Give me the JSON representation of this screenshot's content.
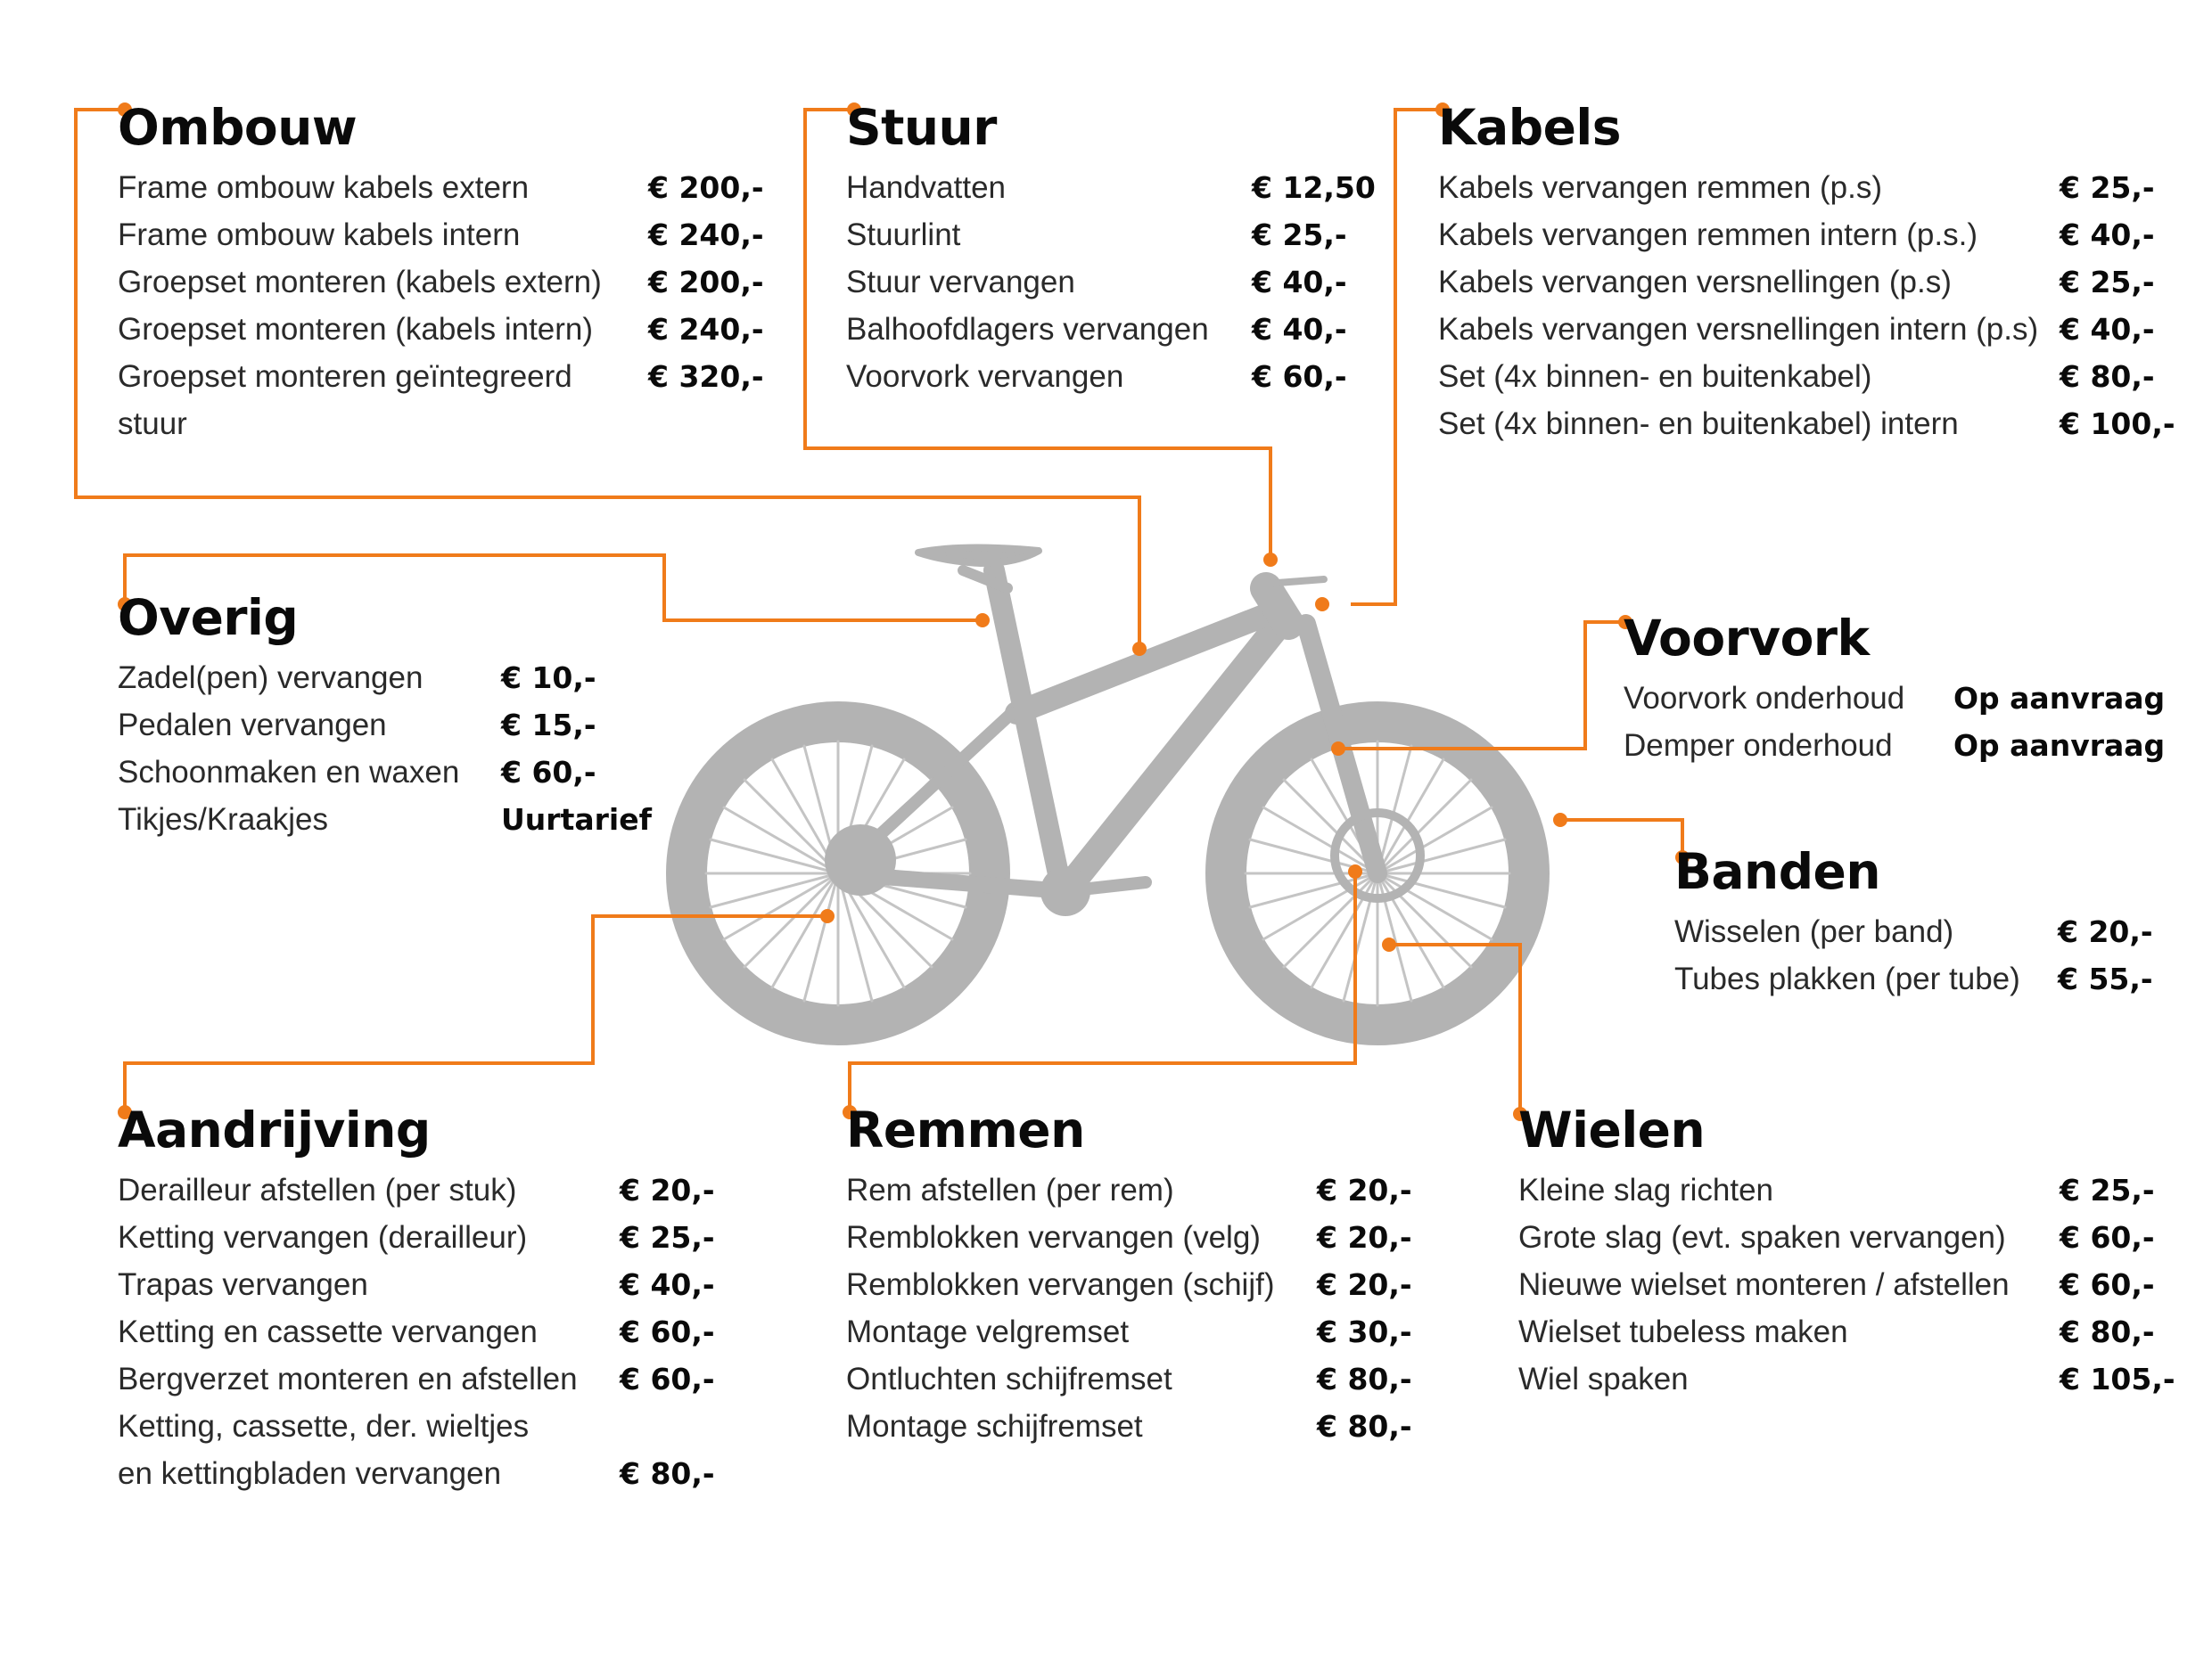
{
  "colors": {
    "accent": "#f07b1a",
    "bike": "#b3b3b3",
    "text": "#1a1a1a"
  },
  "diagram_image": "bike-silhouette",
  "sections": {
    "ombouw": {
      "title": "Ombouw",
      "items": [
        {
          "label": "Frame ombouw kabels extern",
          "price": "€ 200,-"
        },
        {
          "label": "Frame ombouw kabels intern",
          "price": "€ 240,-"
        },
        {
          "label": "Groepset monteren (kabels extern)",
          "price": "€ 200,-"
        },
        {
          "label": "Groepset monteren (kabels intern)",
          "price": "€ 240,-"
        },
        {
          "label": "Groepset monteren geïntegreerd",
          "price": "€ 320,-"
        },
        {
          "label": "stuur",
          "price": ""
        }
      ]
    },
    "stuur": {
      "title": "Stuur",
      "items": [
        {
          "label": "Handvatten",
          "price": "€ 12,50"
        },
        {
          "label": "Stuurlint",
          "price": "€ 25,-"
        },
        {
          "label": "Stuur vervangen",
          "price": "€ 40,-"
        },
        {
          "label": "Balhoofdlagers vervangen",
          "price": "€ 40,-"
        },
        {
          "label": "Voorvork vervangen",
          "price": "€ 60,-"
        }
      ]
    },
    "kabels": {
      "title": "Kabels",
      "items": [
        {
          "label": "Kabels vervangen remmen (p.s)",
          "price": "€ 25,-"
        },
        {
          "label": "Kabels vervangen remmen intern (p.s.)",
          "price": "€ 40,-"
        },
        {
          "label": "Kabels vervangen versnellingen (p.s)",
          "price": "€ 25,-"
        },
        {
          "label": "Kabels vervangen versnellingen intern (p.s)",
          "price": "€ 40,-"
        },
        {
          "label": "Set (4x binnen- en buitenkabel)",
          "price": "€ 80,-"
        },
        {
          "label": "Set (4x binnen- en buitenkabel) intern",
          "price": "€ 100,-"
        }
      ]
    },
    "overig": {
      "title": "Overig",
      "items": [
        {
          "label": "Zadel(pen) vervangen",
          "price": "€ 10,-"
        },
        {
          "label": "Pedalen vervangen",
          "price": "€ 15,-"
        },
        {
          "label": "Schoonmaken en waxen",
          "price": "€ 60,-"
        },
        {
          "label": "Tikjes/Kraakjes",
          "price": "Uurtarief"
        }
      ]
    },
    "voorvork": {
      "title": "Voorvork",
      "items": [
        {
          "label": "Voorvork onderhoud",
          "price": "Op aanvraag"
        },
        {
          "label": "Demper onderhoud",
          "price": "Op aanvraag"
        }
      ]
    },
    "banden": {
      "title": "Banden",
      "items": [
        {
          "label": "Wisselen (per band)",
          "price": "€ 20,-"
        },
        {
          "label": "Tubes plakken (per tube)",
          "price": "€ 55,-"
        }
      ]
    },
    "aandrijving": {
      "title": "Aandrijving",
      "items": [
        {
          "label": "Derailleur afstellen (per stuk)",
          "price": "€ 20,-"
        },
        {
          "label": "Ketting vervangen (derailleur)",
          "price": "€ 25,-"
        },
        {
          "label": "Trapas vervangen",
          "price": "€ 40,-"
        },
        {
          "label": "Ketting en cassette vervangen",
          "price": "€ 60,-"
        },
        {
          "label": "Bergverzet monteren en afstellen",
          "price": "€ 60,-"
        },
        {
          "label": "Ketting, cassette, der. wieltjes",
          "price": ""
        },
        {
          "label": "en kettingbladen vervangen",
          "price": "€ 80,-"
        }
      ]
    },
    "remmen": {
      "title": "Remmen",
      "items": [
        {
          "label": "Rem afstellen (per rem)",
          "price": "€ 20,-"
        },
        {
          "label": "Remblokken vervangen (velg)",
          "price": "€ 20,-"
        },
        {
          "label": "Remblokken vervangen (schijf)",
          "price": "€ 20,-"
        },
        {
          "label": "Montage velgremset",
          "price": "€ 30,-"
        },
        {
          "label": "Ontluchten schijfremset",
          "price": "€ 80,-"
        },
        {
          "label": "Montage schijfremset",
          "price": "€ 80,-"
        }
      ]
    },
    "wielen": {
      "title": "Wielen",
      "items": [
        {
          "label": "Kleine slag richten",
          "price": "€ 25,-"
        },
        {
          "label": "Grote slag (evt. spaken vervangen)",
          "price": "€ 60,-"
        },
        {
          "label": "Nieuwe wielset monteren / afstellen",
          "price": "€ 60,-"
        },
        {
          "label": "Wielset tubeless maken",
          "price": "€ 80,-"
        },
        {
          "label": "Wiel spaken",
          "price": "€ 105,-"
        }
      ]
    }
  }
}
